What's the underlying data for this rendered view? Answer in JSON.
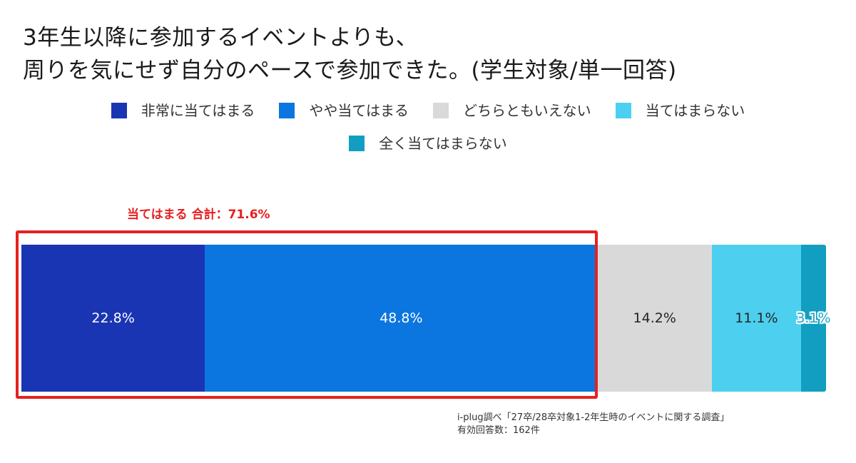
{
  "title": {
    "line1": "3年生以降に参加するイベントよりも、",
    "line2": "周りを気にせず自分のペースで参加できた。(学生対象/単一回答)"
  },
  "highlight": {
    "label": "当てはまる 合計：71.6%",
    "color": "#e5201f"
  },
  "footnote": {
    "line1": "i-plug調べ「27卒/28卒対象1-2年生時のイベントに関する調査」",
    "line2": "有効回答数：162件"
  },
  "chart_data": {
    "type": "bar",
    "orientation": "horizontal-stacked-100",
    "title": "3年生以降に参加するイベントよりも、周りを気にせず自分のペースで参加できた。(学生対象/単一回答)",
    "legend_position": "top",
    "grid": false,
    "xlim": [
      0,
      100
    ],
    "series": [
      {
        "name": "非常に当てはまる",
        "value": 22.8,
        "label": "22.8%",
        "color": "#1a35b3",
        "label_color": "#ffffff"
      },
      {
        "name": "やや当てはまる",
        "value": 48.8,
        "label": "48.8%",
        "color": "#0b76df",
        "label_color": "#ffffff"
      },
      {
        "name": "どちらともいえない",
        "value": 14.2,
        "label": "14.2%",
        "color": "#d9d9d9",
        "label_color": "#222222"
      },
      {
        "name": "当てはまらない",
        "value": 11.1,
        "label": "11.1%",
        "color": "#4dd0ef",
        "label_color": "#222222"
      },
      {
        "name": "全く当てはまらない",
        "value": 3.1,
        "label": "3.1%",
        "color": "#119ec0",
        "label_color": "#1aa6c8"
      }
    ]
  }
}
